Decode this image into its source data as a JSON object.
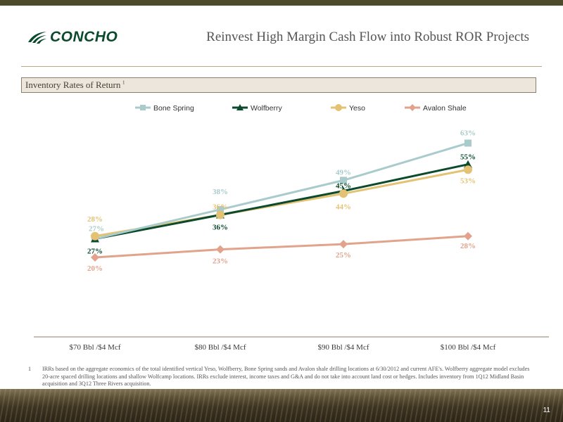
{
  "brand": {
    "logo_text": "CONCHO",
    "brand_color": "#0b4a2c"
  },
  "slide": {
    "title": "Reinvest High Margin Cash Flow into Robust ROR Projects",
    "section_title": "Inventory Rates of Return",
    "section_footnote_marker": "1",
    "page_number": "11"
  },
  "footnote": {
    "number": "1",
    "text": "IRRs based on the aggregate economics of the total identified  vertical Yeso, Wolfberry, Bone Spring sands and Avalon shale drilling locations at 6/30/2012 and current AFE's. Wolfberry aggregate model excludes 20-acre spaced drilling locations and shallow Wolfcamp locations.  IRRs exclude interest, income taxes and G&A and do not take into account land cost or hedges. Includes inventory from 1Q12 Midland Basin acquisition and 3Q12 Three Rivers acquisition."
  },
  "chart_data": {
    "type": "line",
    "title": "",
    "xlabel": "",
    "ylabel": "",
    "categories": [
      "$70 Bbl /$4 Mcf",
      "$80 Bbl /$4 Mcf",
      "$90 Bbl /$4 Mcf",
      "$100 Bbl /$4 Mcf"
    ],
    "ylim": [
      0,
      80
    ],
    "grid": false,
    "legend_position": "top",
    "series": [
      {
        "name": "Bone Spring",
        "values": [
          27,
          38,
          49,
          63
        ],
        "labels": [
          "27%",
          "38%",
          "49%",
          "63%"
        ],
        "color": "#a9cbcc",
        "marker": "square"
      },
      {
        "name": "Wolfberry",
        "values": [
          27,
          36,
          45,
          55
        ],
        "labels": [
          "27%",
          "36%",
          "45%",
          "55%"
        ],
        "color": "#0b4a2c",
        "marker": "triangle"
      },
      {
        "name": "Yeso",
        "values": [
          28,
          36,
          44,
          53
        ],
        "labels": [
          "28%",
          "36%",
          "44%",
          "53%"
        ],
        "color": "#e4c274",
        "marker": "circle"
      },
      {
        "name": "Avalon Shale",
        "values": [
          20,
          23,
          25,
          28
        ],
        "labels": [
          "20%",
          "23%",
          "25%",
          "28%"
        ],
        "color": "#e2a38c",
        "marker": "diamond"
      }
    ]
  }
}
